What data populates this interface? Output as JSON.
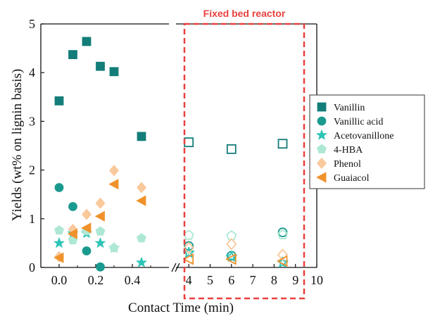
{
  "chart_data": {
    "type": "scatter",
    "xlabel": "Contact Time (min)",
    "ylabel": "Yields (wt% on lignin basis)",
    "annotation": "Fixed bed reactor",
    "axis_break": true,
    "ylim": [
      0,
      5
    ],
    "yticks": [
      "0",
      "1",
      "2",
      "3",
      "4",
      "5"
    ],
    "x_left": {
      "xlim": [
        -0.1,
        0.6
      ],
      "ticks": [
        "0.0",
        "0.2",
        "0.4"
      ],
      "tick_values": [
        0,
        0.2,
        0.4
      ],
      "minor_ticks": [
        0.1,
        0.3,
        0.5
      ]
    },
    "x_right": {
      "xlim": [
        3.4,
        10
      ],
      "ticks": [
        "4",
        "5",
        "6",
        "7",
        "8",
        "9",
        "10"
      ],
      "tick_values": [
        4,
        5,
        6,
        7,
        8,
        9,
        10
      ]
    },
    "legend_position": "right",
    "series": [
      {
        "name": "Vanillin",
        "marker": "square",
        "color": "#137d79",
        "x": [
          0,
          0.075,
          0.15,
          0.225,
          0.3,
          0.45
        ],
        "y": [
          3.42,
          4.37,
          4.64,
          4.13,
          4.02,
          2.69
        ],
        "fixed_bed": {
          "x": [
            4,
            6,
            8.4
          ],
          "y": [
            2.57,
            2.43,
            2.54
          ]
        }
      },
      {
        "name": "Vanillic acid",
        "marker": "circle",
        "color": "#1a9a8e",
        "x": [
          0,
          0.075,
          0.15,
          0.225
        ],
        "y": [
          1.64,
          1.25,
          0.34,
          0.01
        ],
        "fixed_bed": {
          "x": [
            4,
            6,
            8.4
          ],
          "y": [
            0.44,
            0.24,
            0.72
          ]
        }
      },
      {
        "name": "Acetovanillone",
        "marker": "star",
        "color": "#2ec4b6",
        "x": [
          0,
          0.075,
          0.15,
          0.225,
          0.3,
          0.45
        ],
        "y": [
          0.5,
          0.7,
          0.7,
          0.5,
          0.4,
          0.1
        ],
        "fixed_bed": {
          "x": [
            4,
            6,
            8.4
          ],
          "y": [
            0.3,
            0.22,
            0.1
          ]
        }
      },
      {
        "name": "4-HBA",
        "marker": "pentagon",
        "color": "#aee8d4",
        "x": [
          0,
          0.075,
          0.15,
          0.225,
          0.3,
          0.45
        ],
        "y": [
          0.76,
          0.56,
          0.75,
          0.74,
          0.4,
          0.6
        ],
        "fixed_bed": {
          "x": [
            4,
            6,
            8.4
          ],
          "y": [
            0.66,
            0.65,
            0.67
          ]
        }
      },
      {
        "name": "Phenol",
        "marker": "diamond",
        "color": "#f9c89b",
        "x": [
          0,
          0.075,
          0.15,
          0.225,
          0.3,
          0.45
        ],
        "y": [
          0.22,
          0.78,
          1.09,
          1.32,
          1.99,
          1.64
        ],
        "fixed_bed": {
          "x": [
            4,
            6,
            8.4
          ],
          "y": [
            0.4,
            0.48,
            0.26
          ]
        }
      },
      {
        "name": "Guaiacol",
        "marker": "triangle-left",
        "color": "#f0922b",
        "x": [
          0,
          0.075,
          0.15,
          0.225,
          0.3,
          0.45
        ],
        "y": [
          0.2,
          0.69,
          0.81,
          1.05,
          1.71,
          1.37
        ],
        "fixed_bed": {
          "x": [
            4,
            6,
            8.4
          ],
          "y": [
            0.17,
            0.17,
            0.13
          ]
        }
      }
    ]
  }
}
